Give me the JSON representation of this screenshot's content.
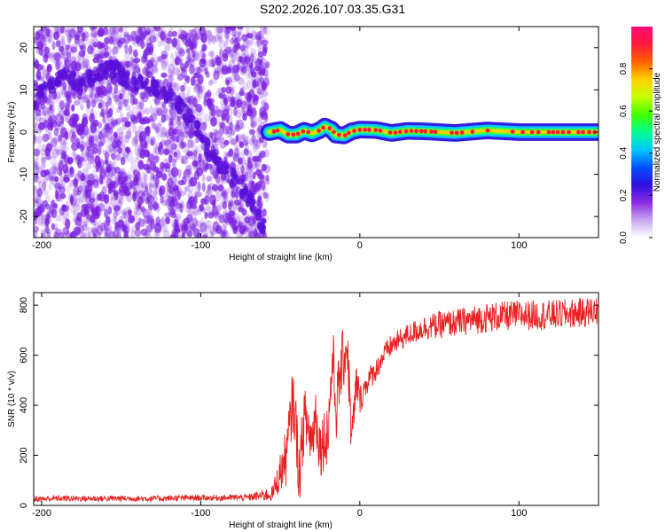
{
  "title": "S202.2026.107.03.35.G31",
  "charts": [
    {
      "type": "heatmap",
      "xlabel": "Height of straight line (km)",
      "ylabel": "Frequency (Hz)",
      "xlim": [
        -205,
        150
      ],
      "ylim": [
        -25,
        25
      ],
      "xticks": [
        -200,
        -100,
        0,
        100
      ],
      "yticks": [
        -20,
        -10,
        0,
        10,
        20
      ],
      "xtick_labels": [
        "-200",
        "-100",
        "0",
        "100"
      ],
      "ytick_labels": [
        "-20",
        "-10",
        "0",
        "10",
        "20"
      ],
      "noise_region_x": [
        -205,
        -58
      ],
      "noise_color": "#7a1fe0",
      "coherent_line": {
        "x_start": -57,
        "x_end": 150,
        "freq_hz": 0,
        "ridge_points": [
          [
            -57,
            0
          ],
          [
            -50,
            0.5
          ],
          [
            -45,
            -0.6
          ],
          [
            -40,
            -0.6
          ],
          [
            -35,
            0.3
          ],
          [
            -30,
            -0.3
          ],
          [
            -25,
            0.5
          ],
          [
            -22,
            1.3
          ],
          [
            -18,
            0.6
          ],
          [
            -15,
            -0.6
          ],
          [
            -10,
            -0.8
          ],
          [
            -5,
            0.2
          ],
          [
            0,
            0.6
          ],
          [
            10,
            0.5
          ],
          [
            20,
            -0.2
          ],
          [
            30,
            0.3
          ],
          [
            40,
            0.2
          ],
          [
            60,
            -0.2
          ],
          [
            80,
            0.4
          ],
          [
            100,
            0
          ],
          [
            120,
            0
          ],
          [
            150,
            0
          ]
        ]
      },
      "tracks": [
        {
          "points": [
            [
              -205,
              8
            ],
            [
              -195,
              11
            ],
            [
              -185,
              13
            ],
            [
              -175,
              11
            ],
            [
              -165,
              14
            ],
            [
              -155,
              15
            ],
            [
              -145,
              12
            ],
            [
              -135,
              11
            ],
            [
              -125,
              10
            ],
            [
              -115,
              7
            ],
            [
              -105,
              2
            ],
            [
              -95,
              -4
            ],
            [
              -85,
              -9
            ],
            [
              -75,
              -13
            ],
            [
              -65,
              -19
            ],
            [
              -60,
              -23
            ]
          ]
        }
      ]
    },
    {
      "type": "line",
      "xlabel": "Height of straight line (km)",
      "ylabel": "SNR (10 * v/v)",
      "xlim": [
        -205,
        150
      ],
      "ylim": [
        0,
        850
      ],
      "xticks": [
        -200,
        -100,
        0,
        100
      ],
      "yticks": [
        0,
        200,
        400,
        600,
        800
      ],
      "xtick_labels": [
        "-200",
        "-100",
        "0",
        "100"
      ],
      "ytick_labels": [
        "0",
        "200",
        "400",
        "600",
        "800"
      ],
      "line_color": "#e82020",
      "series_x": [
        -205,
        -190,
        -170,
        -150,
        -130,
        -110,
        -90,
        -70,
        -55,
        -46,
        -42,
        -40,
        -38,
        -35,
        -32,
        -30,
        -28,
        -25,
        -20,
        -17,
        -15,
        -12,
        -8,
        -5,
        -2,
        0,
        5,
        10,
        15,
        20,
        25,
        30,
        40,
        50,
        60,
        80,
        100,
        120,
        140,
        150
      ],
      "series_y": [
        25,
        28,
        27,
        28,
        27,
        30,
        30,
        32,
        45,
        200,
        430,
        300,
        120,
        350,
        300,
        250,
        380,
        230,
        300,
        600,
        380,
        540,
        650,
        250,
        500,
        420,
        500,
        540,
        600,
        640,
        660,
        680,
        710,
        720,
        730,
        750,
        760,
        760,
        770,
        780
      ],
      "noise_amplitude": [
        12,
        12,
        12,
        12,
        12,
        12,
        12,
        14,
        30,
        120,
        130,
        130,
        130,
        130,
        120,
        120,
        120,
        120,
        130,
        130,
        130,
        130,
        120,
        120,
        90,
        60,
        50,
        45,
        45,
        45,
        45,
        45,
        50,
        55,
        55,
        60,
        60,
        60,
        60,
        60
      ]
    },
    {
      "type": "colorbar",
      "label": "Normalized spectral amplitude",
      "range": [
        0.0,
        1.0
      ],
      "ticks": [
        0.0,
        0.2,
        0.4,
        0.6,
        0.8
      ],
      "tick_labels": [
        "0.0",
        "0.2",
        "0.4",
        "0.6",
        "0.8"
      ],
      "colors": [
        "#ffffff",
        "#c8a8f0",
        "#8a2be2",
        "#3010e0",
        "#0050ff",
        "#00c8ff",
        "#00ff90",
        "#40ff00",
        "#c8ff00",
        "#ffd000",
        "#ff6000",
        "#ff1a3c",
        "#ff0a78"
      ]
    }
  ]
}
